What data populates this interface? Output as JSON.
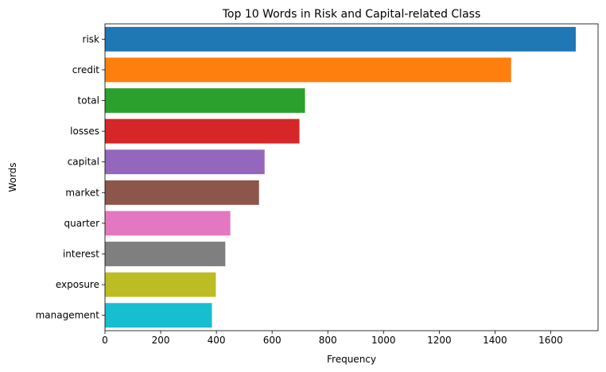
{
  "chart_data": {
    "type": "bar",
    "orientation": "horizontal",
    "title": "Top 10 Words in Risk and Capital-related Class",
    "xlabel": "Frequency",
    "ylabel": "Words",
    "categories": [
      "risk",
      "credit",
      "total",
      "losses",
      "capital",
      "market",
      "quarter",
      "interest",
      "exposure",
      "management"
    ],
    "values": [
      1690,
      1458,
      718,
      698,
      573,
      553,
      450,
      432,
      398,
      384
    ],
    "colors": [
      "#1f77b4",
      "#ff7f0e",
      "#2ca02c",
      "#d62728",
      "#9467bd",
      "#8c564b",
      "#e377c2",
      "#7f7f7f",
      "#bcbd22",
      "#17becf"
    ],
    "xlim": [
      0,
      1770
    ],
    "xticks": [
      0,
      200,
      400,
      600,
      800,
      1000,
      1200,
      1400,
      1600
    ],
    "grid": false,
    "legend": "none"
  }
}
